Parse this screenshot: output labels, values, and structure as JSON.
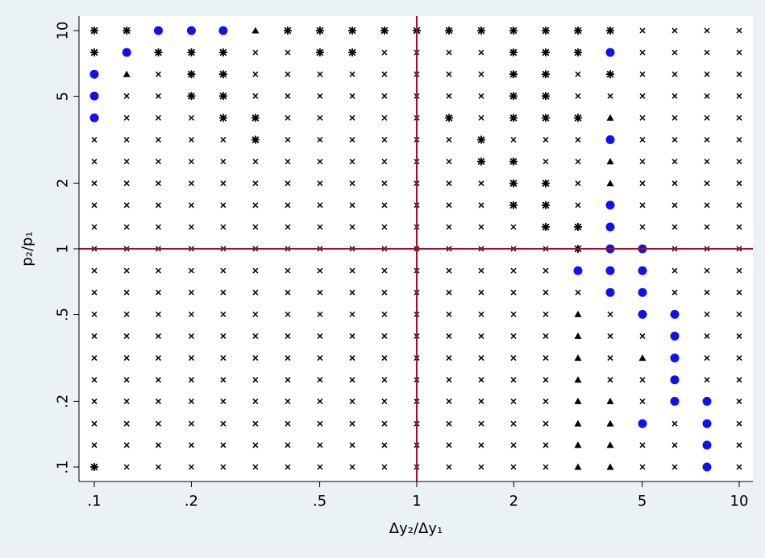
{
  "chart_data": {
    "type": "scatter",
    "title": "",
    "xlabel": "Δy₂/Δy₁",
    "ylabel": "p₂/p₁",
    "x_scale": "log",
    "y_scale": "log",
    "xlim": [
      0.1,
      10
    ],
    "ylim": [
      0.1,
      10
    ],
    "x_ticks": [
      {
        "value": 0.1,
        "label": ".1"
      },
      {
        "value": 0.2,
        "label": ".2"
      },
      {
        "value": 0.5,
        "label": ".5"
      },
      {
        "value": 1,
        "label": "1"
      },
      {
        "value": 2,
        "label": "2"
      },
      {
        "value": 5,
        "label": "5"
      },
      {
        "value": 10,
        "label": "10"
      }
    ],
    "y_ticks": [
      {
        "value": 0.1,
        "label": ".1"
      },
      {
        "value": 0.2,
        "label": ".2"
      },
      {
        "value": 0.5,
        "label": ".5"
      },
      {
        "value": 1,
        "label": "1"
      },
      {
        "value": 2,
        "label": "2"
      },
      {
        "value": 5,
        "label": "5"
      },
      {
        "value": 10,
        "label": "10"
      }
    ],
    "reference_lines": {
      "x": 1,
      "y": 1,
      "color": "#a0102a"
    },
    "grid": false,
    "legend": "none",
    "grid_values": [
      0.1,
      0.126,
      0.158,
      0.2,
      0.251,
      0.316,
      0.398,
      0.501,
      0.631,
      0.794,
      1,
      1.259,
      1.585,
      1.995,
      2.512,
      3.162,
      3.981,
      5.012,
      6.31,
      7.943,
      10
    ],
    "default_marker": "x",
    "series": [
      {
        "marker": "circle",
        "color": "#1010f0",
        "points": [
          [
            0.126,
            10
          ],
          [
            0.158,
            10
          ],
          [
            0.2,
            10
          ],
          [
            0.251,
            10
          ],
          [
            0.126,
            7.943
          ],
          [
            0.1,
            6.31
          ],
          [
            0.1,
            5.012
          ],
          [
            0.1,
            3.981
          ],
          [
            3.981,
            7.943
          ],
          [
            3.981,
            3.162
          ],
          [
            3.981,
            1.585
          ],
          [
            3.981,
            1.259
          ],
          [
            3.981,
            1
          ],
          [
            5.012,
            1
          ],
          [
            3.162,
            0.794
          ],
          [
            3.981,
            0.794
          ],
          [
            5.012,
            0.794
          ],
          [
            3.981,
            0.631
          ],
          [
            5.012,
            0.631
          ],
          [
            5.012,
            0.501
          ],
          [
            6.31,
            0.501
          ],
          [
            6.31,
            0.398
          ],
          [
            6.31,
            0.316
          ],
          [
            6.31,
            0.251
          ],
          [
            6.31,
            0.2
          ],
          [
            7.943,
            0.2
          ],
          [
            5.012,
            0.158
          ],
          [
            7.943,
            0.158
          ],
          [
            7.943,
            0.126
          ],
          [
            7.943,
            0.1
          ]
        ]
      },
      {
        "marker": "plus",
        "color": "#000000",
        "points": [
          [
            0.1,
            10
          ],
          [
            0.126,
            10
          ],
          [
            0.398,
            10
          ],
          [
            0.501,
            10
          ],
          [
            0.631,
            10
          ],
          [
            0.794,
            10
          ],
          [
            1,
            10
          ],
          [
            1.259,
            10
          ],
          [
            1.585,
            10
          ],
          [
            1.995,
            10
          ],
          [
            2.512,
            10
          ],
          [
            3.162,
            10
          ],
          [
            3.981,
            10
          ],
          [
            0.1,
            7.943
          ],
          [
            0.158,
            7.943
          ],
          [
            0.2,
            7.943
          ],
          [
            0.251,
            7.943
          ],
          [
            0.501,
            7.943
          ],
          [
            0.631,
            7.943
          ],
          [
            1.995,
            7.943
          ],
          [
            2.512,
            7.943
          ],
          [
            3.162,
            7.943
          ],
          [
            0.2,
            6.31
          ],
          [
            0.251,
            6.31
          ],
          [
            1.995,
            6.31
          ],
          [
            2.512,
            6.31
          ],
          [
            3.981,
            6.31
          ],
          [
            0.2,
            5.012
          ],
          [
            0.251,
            5.012
          ],
          [
            1.995,
            5.012
          ],
          [
            2.512,
            5.012
          ],
          [
            0.251,
            3.981
          ],
          [
            0.316,
            3.981
          ],
          [
            1.259,
            3.981
          ],
          [
            1.995,
            3.981
          ],
          [
            2.512,
            3.981
          ],
          [
            3.162,
            3.981
          ],
          [
            0.316,
            3.162
          ],
          [
            1.585,
            3.162
          ],
          [
            1.585,
            2.512
          ],
          [
            1.995,
            2.512
          ],
          [
            1.995,
            1.995
          ],
          [
            2.512,
            1.995
          ],
          [
            1.995,
            1.585
          ],
          [
            2.512,
            1.585
          ],
          [
            2.512,
            1.259
          ],
          [
            3.162,
            1.259
          ],
          [
            3.162,
            1
          ],
          [
            0.1,
            0.1
          ]
        ]
      },
      {
        "marker": "triangle",
        "color": "#000000",
        "points": [
          [
            0.316,
            10
          ],
          [
            0.126,
            6.31
          ],
          [
            3.981,
            3.981
          ],
          [
            3.981,
            2.512
          ],
          [
            3.981,
            1.995
          ],
          [
            3.162,
            0.501
          ],
          [
            3.162,
            0.398
          ],
          [
            3.162,
            0.316
          ],
          [
            5.012,
            0.316
          ],
          [
            3.162,
            0.251
          ],
          [
            3.162,
            0.2
          ],
          [
            3.981,
            0.2
          ],
          [
            3.162,
            0.158
          ],
          [
            3.981,
            0.158
          ],
          [
            3.162,
            0.126
          ],
          [
            3.981,
            0.126
          ],
          [
            3.162,
            0.1
          ],
          [
            3.981,
            0.1
          ]
        ]
      }
    ]
  }
}
